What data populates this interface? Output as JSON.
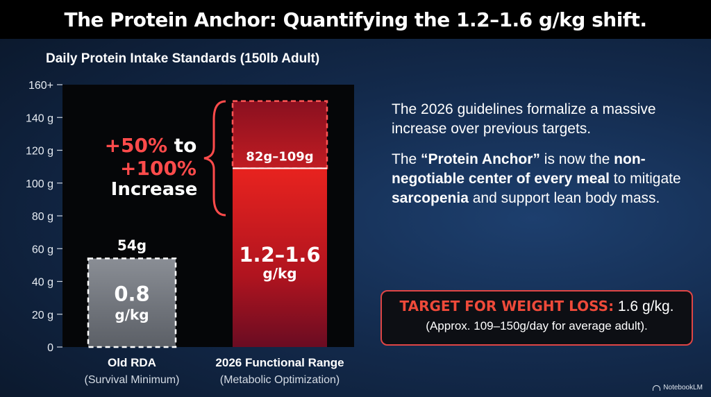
{
  "header": {
    "title": "The Protein Anchor: Quantifying the 1.2–1.6 g/kg shift."
  },
  "chart_data": {
    "type": "bar",
    "title": "Daily Protein Intake Standards (150lb Adult)",
    "ylim": [
      0,
      160
    ],
    "yticks": [
      {
        "value": 0,
        "label": "0"
      },
      {
        "value": 20,
        "label": "20 g"
      },
      {
        "value": 40,
        "label": "40 g"
      },
      {
        "value": 60,
        "label": "60 g"
      },
      {
        "value": 80,
        "label": "80 g"
      },
      {
        "value": 100,
        "label": "100 g"
      },
      {
        "value": 120,
        "label": "120 g"
      },
      {
        "value": 140,
        "label": "140 g"
      },
      {
        "value": 160,
        "label": "160+"
      }
    ],
    "categories": [
      {
        "label": "Old RDA",
        "sublabel": "(Survival Minimum)"
      },
      {
        "label": "2026 Functional Range",
        "sublabel": "(Metabolic Optimization)"
      }
    ],
    "bars": [
      {
        "value": 54,
        "top_label": "54g",
        "rate_label": "0.8",
        "unit_label": "g/kg",
        "color": "#7b7f86"
      },
      {
        "value": 109,
        "range_max": 150,
        "range_label": "82g–109g",
        "rate_label": "1.2–1.6",
        "unit_label": "g/kg",
        "color": "#d61f1f"
      }
    ],
    "annotation": {
      "line1": "+50% to",
      "line2": "+100%",
      "line3": "Increase",
      "pct_color": "#ff4b4b"
    },
    "grid": false
  },
  "text_panel": {
    "p1": "The 2026 guidelines formalize a massive increase over previous targets.",
    "p2_prefix": "The ",
    "p2_bold1": "“Protein Anchor”",
    "p2_mid1": " is now the ",
    "p2_bold2": "non-negotiable center of every meal",
    "p2_mid2": " to mitigate ",
    "p2_bold3": "sarcopenia",
    "p2_suffix": " and support lean body mass."
  },
  "target": {
    "label": "TARGET FOR WEIGHT LOSS:",
    "value": " 1.6 g/kg.",
    "detail": "(Approx. 109–150g/day for average adult)."
  },
  "brand": {
    "name": "NotebookLM"
  }
}
